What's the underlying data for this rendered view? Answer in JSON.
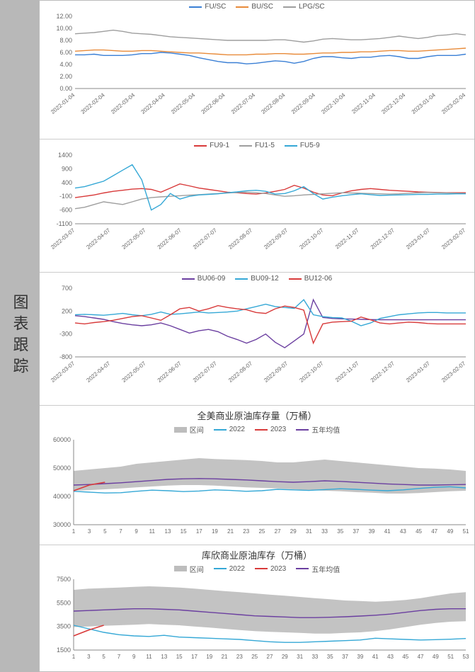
{
  "sidebar": {
    "label": "图表跟踪"
  },
  "chart1": {
    "type": "line",
    "legend": [
      {
        "label": "FU/SC",
        "color": "#3a7fd5"
      },
      {
        "label": "BU/SC",
        "color": "#e88b3a"
      },
      {
        "label": "LPG/SC",
        "color": "#9e9e9e"
      }
    ],
    "ylim": [
      0,
      12
    ],
    "ytick_step": 2,
    "yticks": [
      "0.00",
      "2.00",
      "4.00",
      "6.00",
      "8.00",
      "10.00",
      "12.00"
    ],
    "xticks": [
      "2022-01-04",
      "2022-02-04",
      "2022-03-04",
      "2022-04-04",
      "2022-05-04",
      "2022-06-04",
      "2022-07-04",
      "2022-08-04",
      "2022-09-04",
      "2022-10-04",
      "2022-11-04",
      "2022-12-04",
      "2023-01-04",
      "2023-02-04"
    ],
    "series": {
      "fu": [
        5.6,
        5.6,
        5.7,
        5.5,
        5.5,
        5.5,
        5.6,
        5.8,
        5.8,
        6.0,
        5.9,
        5.7,
        5.5,
        5.1,
        4.8,
        4.5,
        4.3,
        4.3,
        4.1,
        4.2,
        4.4,
        4.6,
        4.5,
        4.2,
        4.5,
        5.0,
        5.3,
        5.3,
        5.1,
        5.0,
        5.2,
        5.2,
        5.4,
        5.5,
        5.3,
        5.0,
        5.0,
        5.3,
        5.5,
        5.5,
        5.5,
        5.7
      ],
      "bu": [
        6.2,
        6.3,
        6.4,
        6.4,
        6.3,
        6.2,
        6.2,
        6.3,
        6.3,
        6.2,
        6.1,
        6.0,
        5.9,
        5.9,
        5.8,
        5.7,
        5.6,
        5.6,
        5.6,
        5.7,
        5.7,
        5.8,
        5.8,
        5.7,
        5.7,
        5.8,
        5.9,
        5.9,
        6.0,
        6.0,
        6.1,
        6.1,
        6.2,
        6.3,
        6.3,
        6.2,
        6.2,
        6.3,
        6.4,
        6.5,
        6.6,
        6.7
      ],
      "lpg": [
        9.1,
        9.2,
        9.3,
        9.5,
        9.7,
        9.5,
        9.2,
        9.1,
        9.0,
        8.8,
        8.6,
        8.5,
        8.4,
        8.3,
        8.2,
        8.1,
        8.0,
        8.0,
        8.0,
        8.0,
        8.0,
        8.1,
        8.1,
        7.9,
        7.7,
        7.9,
        8.2,
        8.3,
        8.2,
        8.1,
        8.1,
        8.2,
        8.3,
        8.5,
        8.7,
        8.5,
        8.3,
        8.5,
        8.8,
        8.9,
        9.1,
        8.9
      ]
    }
  },
  "chart2": {
    "type": "line",
    "legend": [
      {
        "label": "FU9-1",
        "color": "#d83a3a"
      },
      {
        "label": "FU1-5",
        "color": "#9e9e9e"
      },
      {
        "label": "FU5-9",
        "color": "#35a8d6"
      }
    ],
    "yticks": [
      "-1100",
      "-600",
      "-100",
      "400",
      "900",
      "1400"
    ],
    "ylim": [
      -1100,
      1400
    ],
    "xticks": [
      "2022-03-07",
      "2022-04-07",
      "2022-05-07",
      "2022-06-07",
      "2022-07-07",
      "2022-08-07",
      "2022-09-07",
      "2022-10-07",
      "2022-11-07",
      "2022-12-07",
      "2023-01-07",
      "2023-02-07"
    ],
    "series": {
      "fu91": [
        -150,
        -100,
        -50,
        20,
        80,
        120,
        160,
        180,
        150,
        50,
        200,
        350,
        280,
        200,
        150,
        100,
        50,
        30,
        0,
        -20,
        20,
        80,
        150,
        300,
        200,
        50,
        -50,
        -80,
        20,
        100,
        150,
        180,
        150,
        120,
        100,
        80,
        60,
        50,
        40,
        30,
        30,
        30
      ],
      "fu15": [
        -550,
        -500,
        -400,
        -300,
        -350,
        -400,
        -300,
        -200,
        -150,
        -120,
        -100,
        -80,
        -60,
        -40,
        -20,
        0,
        20,
        40,
        50,
        30,
        0,
        -50,
        -100,
        -80,
        -50,
        -30,
        -10,
        10,
        30,
        20,
        10,
        0,
        -10,
        -20,
        -10,
        10,
        30,
        40,
        30,
        20,
        10,
        0
      ],
      "fu59": [
        200,
        250,
        350,
        450,
        650,
        850,
        1050,
        500,
        -600,
        -400,
        0,
        -200,
        -100,
        -50,
        -30,
        -10,
        30,
        60,
        100,
        120,
        80,
        -20,
        0,
        100,
        250,
        0,
        -200,
        -130,
        -80,
        -40,
        -10,
        -40,
        -70,
        -60,
        -50,
        -40,
        -30,
        -30,
        -20,
        -20,
        -10,
        -10
      ]
    }
  },
  "chart3": {
    "type": "line",
    "legend": [
      {
        "label": "BU06-09",
        "color": "#6b3fa0"
      },
      {
        "label": "BU09-12",
        "color": "#35a8d6"
      },
      {
        "label": "BU12-06",
        "color": "#d83a3a"
      }
    ],
    "yticks": [
      "-800",
      "-300",
      "200",
      "700"
    ],
    "ylim": [
      -800,
      700
    ],
    "xticks": [
      "2022-03-07",
      "2022-04-07",
      "2022-05-07",
      "2022-06-07",
      "2022-07-07",
      "2022-08-07",
      "2022-09-07",
      "2022-10-07",
      "2022-11-07",
      "2022-12-07",
      "2023-01-07",
      "2023-02-07"
    ],
    "series": {
      "bu0609": [
        100,
        80,
        50,
        20,
        -30,
        -70,
        -100,
        -120,
        -100,
        -60,
        -120,
        -200,
        -280,
        -230,
        -200,
        -250,
        -350,
        -420,
        -500,
        -420,
        -300,
        -480,
        -600,
        -450,
        -300,
        450,
        60,
        40,
        30,
        25,
        20,
        15,
        12,
        10,
        10,
        10,
        10,
        10,
        10,
        10,
        10,
        10
      ],
      "bu0912": [
        120,
        130,
        120,
        110,
        130,
        150,
        120,
        100,
        130,
        180,
        130,
        140,
        160,
        180,
        160,
        170,
        180,
        200,
        250,
        300,
        350,
        300,
        280,
        260,
        450,
        120,
        80,
        60,
        50,
        -20,
        -120,
        -60,
        40,
        80,
        120,
        140,
        160,
        170,
        170,
        160,
        160,
        160
      ],
      "bu1206": [
        -60,
        -80,
        -50,
        -30,
        0,
        40,
        80,
        100,
        50,
        0,
        120,
        250,
        280,
        200,
        250,
        320,
        280,
        250,
        230,
        170,
        150,
        250,
        310,
        280,
        220,
        -500,
        -80,
        -40,
        -30,
        -20,
        70,
        10,
        -60,
        -80,
        -60,
        -40,
        -50,
        -70,
        -80,
        -80,
        -80,
        -80
      ]
    }
  },
  "chart4": {
    "type": "line-with-band",
    "title": "全美商业原油库存量（万桶）",
    "legend": [
      {
        "label": "区间",
        "color": "#bdbdbd",
        "style": "area"
      },
      {
        "label": "2022",
        "color": "#35a8d6"
      },
      {
        "label": "2023",
        "color": "#d83a3a"
      },
      {
        "label": "五年均值",
        "color": "#6b3fa0"
      }
    ],
    "yticks": [
      "30000",
      "40000",
      "50000",
      "60000"
    ],
    "ylim": [
      30000,
      60000
    ],
    "xticks": [
      1,
      3,
      5,
      7,
      9,
      11,
      13,
      15,
      17,
      19,
      21,
      23,
      25,
      27,
      29,
      31,
      33,
      35,
      37,
      39,
      41,
      43,
      45,
      47,
      49,
      51
    ],
    "band_upper": [
      49000,
      49500,
      50000,
      50500,
      51500,
      52000,
      52500,
      53000,
      53500,
      53200,
      53000,
      52800,
      52500,
      52000,
      52000,
      52500,
      53000,
      52500,
      52000,
      51500,
      51000,
      50500,
      50000,
      49800,
      49500,
      49000
    ],
    "band_lower": [
      42000,
      42200,
      42500,
      42800,
      43200,
      43500,
      43800,
      44000,
      44000,
      43800,
      43500,
      43200,
      43000,
      42800,
      42500,
      42200,
      42000,
      41800,
      41500,
      41300,
      41000,
      41000,
      41200,
      41500,
      41800,
      42000
    ],
    "y2022": [
      41800,
      41500,
      41200,
      41300,
      41800,
      42200,
      42000,
      41700,
      41900,
      42300,
      42100,
      41800,
      42000,
      42500,
      42300,
      42100,
      42400,
      42700,
      42500,
      42200,
      42000,
      42300,
      42800,
      43200,
      43400,
      43000
    ],
    "y2023": [
      42000,
      44000,
      45000
    ],
    "avg": [
      44000,
      44200,
      44500,
      44800,
      45200,
      45600,
      46000,
      46200,
      46300,
      46200,
      46000,
      45800,
      45500,
      45200,
      45000,
      45200,
      45500,
      45300,
      45000,
      44700,
      44400,
      44200,
      44000,
      44000,
      44100,
      44200
    ]
  },
  "chart5": {
    "type": "line-with-band",
    "title": "库欣商业原油库存（万桶）",
    "legend": [
      {
        "label": "区间",
        "color": "#bdbdbd",
        "style": "area"
      },
      {
        "label": "2022",
        "color": "#35a8d6"
      },
      {
        "label": "2023",
        "color": "#d83a3a"
      },
      {
        "label": "五年均值",
        "color": "#6b3fa0"
      }
    ],
    "yticks": [
      "1500",
      "3500",
      "5500",
      "7500"
    ],
    "ylim": [
      1500,
      7500
    ],
    "xticks": [
      1,
      3,
      5,
      7,
      9,
      11,
      13,
      15,
      17,
      19,
      21,
      23,
      25,
      27,
      29,
      31,
      33,
      35,
      37,
      39,
      41,
      43,
      45,
      47,
      49,
      51,
      53
    ],
    "band_upper": [
      6600,
      6700,
      6750,
      6800,
      6850,
      6900,
      6850,
      6800,
      6700,
      6600,
      6500,
      6400,
      6300,
      6200,
      6100,
      6000,
      5900,
      5800,
      5700,
      5650,
      5600,
      5650,
      5750,
      5900,
      6100,
      6300,
      6400
    ],
    "band_lower": [
      3450,
      3500,
      3550,
      3600,
      3650,
      3700,
      3650,
      3600,
      3500,
      3400,
      3300,
      3200,
      3100,
      3050,
      3000,
      2950,
      2900,
      2900,
      2950,
      3000,
      3100,
      3250,
      3450,
      3650,
      3800,
      3900,
      3950
    ],
    "y2022": [
      3600,
      3300,
      3000,
      2800,
      2700,
      2650,
      2750,
      2600,
      2550,
      2500,
      2450,
      2400,
      2300,
      2200,
      2150,
      2150,
      2200,
      2250,
      2300,
      2350,
      2500,
      2450,
      2400,
      2350,
      2380,
      2420,
      2480
    ],
    "y2023": [
      2700,
      3200,
      3600
    ],
    "avg": [
      4800,
      4850,
      4900,
      4950,
      5000,
      5000,
      4950,
      4900,
      4800,
      4700,
      4600,
      4500,
      4400,
      4350,
      4300,
      4250,
      4250,
      4280,
      4320,
      4380,
      4450,
      4550,
      4700,
      4850,
      4950,
      5000,
      5000
    ]
  }
}
